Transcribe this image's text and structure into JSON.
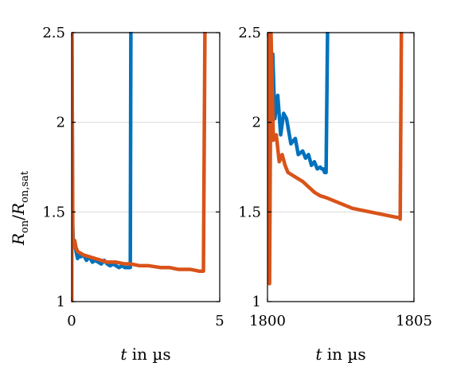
{
  "chart_data": [
    {
      "type": "line",
      "xlabel": "t in µs",
      "ylabel": "R_on/R_on,sat",
      "xlim": [
        0,
        5
      ],
      "ylim": [
        1,
        2.5
      ],
      "xticks": [
        "0",
        "5"
      ],
      "yticks": [
        "1",
        "1.5",
        "2",
        "2.5"
      ],
      "grid": "horizontal",
      "series": [
        {
          "color": "#0072BD",
          "x": [
            0.0,
            0.01,
            0.03,
            0.06,
            0.1,
            0.15,
            0.2,
            0.25,
            0.3,
            0.4,
            0.5,
            0.6,
            0.7,
            0.8,
            0.9,
            1.0,
            1.1,
            1.2,
            1.3,
            1.4,
            1.5,
            1.6,
            1.7,
            1.8,
            1.9,
            1.95,
            1.98,
            2.0
          ],
          "y": [
            1.0,
            2.5,
            1.45,
            1.3,
            1.34,
            1.28,
            1.24,
            1.26,
            1.25,
            1.26,
            1.23,
            1.25,
            1.22,
            1.23,
            1.22,
            1.21,
            1.23,
            1.21,
            1.2,
            1.21,
            1.2,
            1.19,
            1.2,
            1.19,
            1.19,
            1.19,
            1.19,
            2.5
          ]
        },
        {
          "color": "#D95319",
          "x": [
            0.0,
            0.01,
            0.04,
            0.07,
            0.1,
            0.15,
            0.2,
            0.3,
            0.4,
            0.6,
            0.8,
            1.0,
            1.2,
            1.5,
            1.8,
            2.0,
            2.3,
            2.6,
            3.0,
            3.3,
            3.6,
            4.0,
            4.3,
            4.45,
            4.5
          ],
          "y": [
            1.0,
            2.5,
            1.32,
            1.3,
            1.34,
            1.3,
            1.28,
            1.27,
            1.26,
            1.25,
            1.24,
            1.23,
            1.22,
            1.22,
            1.21,
            1.21,
            1.2,
            1.2,
            1.19,
            1.19,
            1.18,
            1.18,
            1.17,
            1.17,
            2.5
          ]
        }
      ]
    },
    {
      "type": "line",
      "xlabel": "t in µs",
      "ylabel": "",
      "xlim": [
        1800,
        1805
      ],
      "ylim": [
        1,
        2.5
      ],
      "xticks": [
        "1800",
        "1805"
      ],
      "yticks": [
        "1",
        "1.5",
        "2",
        "2.5"
      ],
      "grid": "horizontal",
      "series": [
        {
          "color": "#0072BD",
          "x": [
            1800.05,
            1800.1,
            1800.18,
            1800.25,
            1800.35,
            1800.45,
            1800.55,
            1800.65,
            1800.8,
            1800.95,
            1801.05,
            1801.2,
            1801.3,
            1801.4,
            1801.5,
            1801.6,
            1801.7,
            1801.8,
            1801.85,
            1801.9,
            1801.95,
            1802.0,
            1802.05
          ],
          "y": [
            2.5,
            2.07,
            2.38,
            2.02,
            2.15,
            1.93,
            2.05,
            2.02,
            1.88,
            1.91,
            1.82,
            1.84,
            1.8,
            1.82,
            1.76,
            1.78,
            1.74,
            1.75,
            1.74,
            1.74,
            1.72,
            1.72,
            2.5
          ]
        },
        {
          "color": "#D95319",
          "x": [
            1800.0,
            1800.07,
            1800.12,
            1800.2,
            1800.3,
            1800.4,
            1800.5,
            1800.6,
            1800.7,
            1800.8,
            1801.0,
            1801.2,
            1801.4,
            1801.6,
            1801.8,
            1802.0,
            1802.3,
            1802.6,
            1802.9,
            1803.2,
            1803.5,
            1803.8,
            1804.1,
            1804.4,
            1804.5,
            1804.53,
            1804.57
          ],
          "y": [
            2.5,
            1.1,
            2.5,
            1.9,
            1.93,
            1.78,
            1.82,
            1.76,
            1.72,
            1.71,
            1.69,
            1.67,
            1.64,
            1.61,
            1.59,
            1.58,
            1.56,
            1.54,
            1.52,
            1.51,
            1.5,
            1.49,
            1.48,
            1.47,
            1.47,
            1.46,
            2.5
          ]
        }
      ]
    }
  ]
}
